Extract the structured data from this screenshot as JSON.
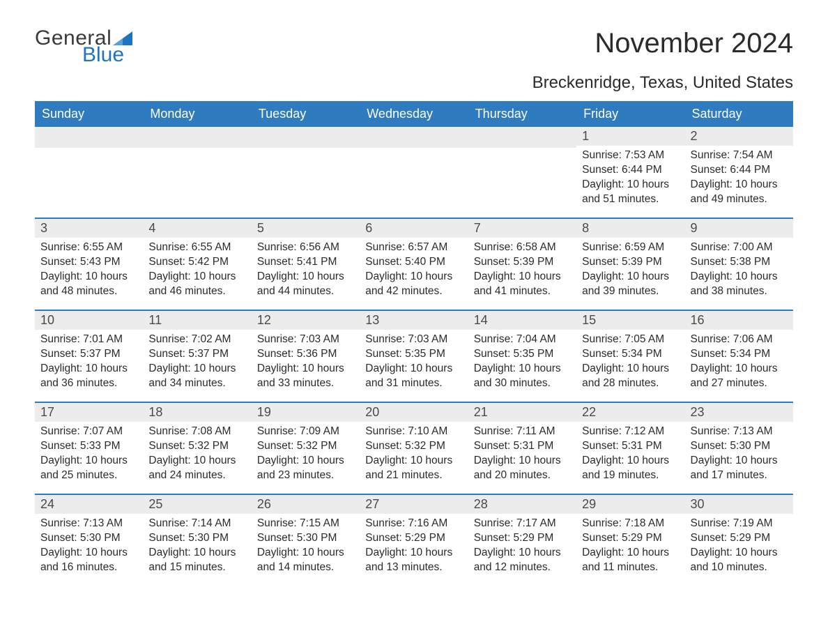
{
  "logo": {
    "word1": "General",
    "word2": "Blue",
    "brand_color": "#1f74bf"
  },
  "title": "November 2024",
  "location": "Breckenridge, Texas, United States",
  "colors": {
    "header_bg": "#2f7bbf",
    "header_text": "#ffffff",
    "daynum_bg": "#ececec",
    "week_border": "#2f7bbf",
    "body_text": "#2b2b2b"
  },
  "day_headers": [
    "Sunday",
    "Monday",
    "Tuesday",
    "Wednesday",
    "Thursday",
    "Friday",
    "Saturday"
  ],
  "weeks": [
    [
      {
        "n": "",
        "sunrise": "",
        "sunset": "",
        "daylight": ""
      },
      {
        "n": "",
        "sunrise": "",
        "sunset": "",
        "daylight": ""
      },
      {
        "n": "",
        "sunrise": "",
        "sunset": "",
        "daylight": ""
      },
      {
        "n": "",
        "sunrise": "",
        "sunset": "",
        "daylight": ""
      },
      {
        "n": "",
        "sunrise": "",
        "sunset": "",
        "daylight": ""
      },
      {
        "n": "1",
        "sunrise": "Sunrise: 7:53 AM",
        "sunset": "Sunset: 6:44 PM",
        "daylight": "Daylight: 10 hours and 51 minutes."
      },
      {
        "n": "2",
        "sunrise": "Sunrise: 7:54 AM",
        "sunset": "Sunset: 6:44 PM",
        "daylight": "Daylight: 10 hours and 49 minutes."
      }
    ],
    [
      {
        "n": "3",
        "sunrise": "Sunrise: 6:55 AM",
        "sunset": "Sunset: 5:43 PM",
        "daylight": "Daylight: 10 hours and 48 minutes."
      },
      {
        "n": "4",
        "sunrise": "Sunrise: 6:55 AM",
        "sunset": "Sunset: 5:42 PM",
        "daylight": "Daylight: 10 hours and 46 minutes."
      },
      {
        "n": "5",
        "sunrise": "Sunrise: 6:56 AM",
        "sunset": "Sunset: 5:41 PM",
        "daylight": "Daylight: 10 hours and 44 minutes."
      },
      {
        "n": "6",
        "sunrise": "Sunrise: 6:57 AM",
        "sunset": "Sunset: 5:40 PM",
        "daylight": "Daylight: 10 hours and 42 minutes."
      },
      {
        "n": "7",
        "sunrise": "Sunrise: 6:58 AM",
        "sunset": "Sunset: 5:39 PM",
        "daylight": "Daylight: 10 hours and 41 minutes."
      },
      {
        "n": "8",
        "sunrise": "Sunrise: 6:59 AM",
        "sunset": "Sunset: 5:39 PM",
        "daylight": "Daylight: 10 hours and 39 minutes."
      },
      {
        "n": "9",
        "sunrise": "Sunrise: 7:00 AM",
        "sunset": "Sunset: 5:38 PM",
        "daylight": "Daylight: 10 hours and 38 minutes."
      }
    ],
    [
      {
        "n": "10",
        "sunrise": "Sunrise: 7:01 AM",
        "sunset": "Sunset: 5:37 PM",
        "daylight": "Daylight: 10 hours and 36 minutes."
      },
      {
        "n": "11",
        "sunrise": "Sunrise: 7:02 AM",
        "sunset": "Sunset: 5:37 PM",
        "daylight": "Daylight: 10 hours and 34 minutes."
      },
      {
        "n": "12",
        "sunrise": "Sunrise: 7:03 AM",
        "sunset": "Sunset: 5:36 PM",
        "daylight": "Daylight: 10 hours and 33 minutes."
      },
      {
        "n": "13",
        "sunrise": "Sunrise: 7:03 AM",
        "sunset": "Sunset: 5:35 PM",
        "daylight": "Daylight: 10 hours and 31 minutes."
      },
      {
        "n": "14",
        "sunrise": "Sunrise: 7:04 AM",
        "sunset": "Sunset: 5:35 PM",
        "daylight": "Daylight: 10 hours and 30 minutes."
      },
      {
        "n": "15",
        "sunrise": "Sunrise: 7:05 AM",
        "sunset": "Sunset: 5:34 PM",
        "daylight": "Daylight: 10 hours and 28 minutes."
      },
      {
        "n": "16",
        "sunrise": "Sunrise: 7:06 AM",
        "sunset": "Sunset: 5:34 PM",
        "daylight": "Daylight: 10 hours and 27 minutes."
      }
    ],
    [
      {
        "n": "17",
        "sunrise": "Sunrise: 7:07 AM",
        "sunset": "Sunset: 5:33 PM",
        "daylight": "Daylight: 10 hours and 25 minutes."
      },
      {
        "n": "18",
        "sunrise": "Sunrise: 7:08 AM",
        "sunset": "Sunset: 5:32 PM",
        "daylight": "Daylight: 10 hours and 24 minutes."
      },
      {
        "n": "19",
        "sunrise": "Sunrise: 7:09 AM",
        "sunset": "Sunset: 5:32 PM",
        "daylight": "Daylight: 10 hours and 23 minutes."
      },
      {
        "n": "20",
        "sunrise": "Sunrise: 7:10 AM",
        "sunset": "Sunset: 5:32 PM",
        "daylight": "Daylight: 10 hours and 21 minutes."
      },
      {
        "n": "21",
        "sunrise": "Sunrise: 7:11 AM",
        "sunset": "Sunset: 5:31 PM",
        "daylight": "Daylight: 10 hours and 20 minutes."
      },
      {
        "n": "22",
        "sunrise": "Sunrise: 7:12 AM",
        "sunset": "Sunset: 5:31 PM",
        "daylight": "Daylight: 10 hours and 19 minutes."
      },
      {
        "n": "23",
        "sunrise": "Sunrise: 7:13 AM",
        "sunset": "Sunset: 5:30 PM",
        "daylight": "Daylight: 10 hours and 17 minutes."
      }
    ],
    [
      {
        "n": "24",
        "sunrise": "Sunrise: 7:13 AM",
        "sunset": "Sunset: 5:30 PM",
        "daylight": "Daylight: 10 hours and 16 minutes."
      },
      {
        "n": "25",
        "sunrise": "Sunrise: 7:14 AM",
        "sunset": "Sunset: 5:30 PM",
        "daylight": "Daylight: 10 hours and 15 minutes."
      },
      {
        "n": "26",
        "sunrise": "Sunrise: 7:15 AM",
        "sunset": "Sunset: 5:30 PM",
        "daylight": "Daylight: 10 hours and 14 minutes."
      },
      {
        "n": "27",
        "sunrise": "Sunrise: 7:16 AM",
        "sunset": "Sunset: 5:29 PM",
        "daylight": "Daylight: 10 hours and 13 minutes."
      },
      {
        "n": "28",
        "sunrise": "Sunrise: 7:17 AM",
        "sunset": "Sunset: 5:29 PM",
        "daylight": "Daylight: 10 hours and 12 minutes."
      },
      {
        "n": "29",
        "sunrise": "Sunrise: 7:18 AM",
        "sunset": "Sunset: 5:29 PM",
        "daylight": "Daylight: 10 hours and 11 minutes."
      },
      {
        "n": "30",
        "sunrise": "Sunrise: 7:19 AM",
        "sunset": "Sunset: 5:29 PM",
        "daylight": "Daylight: 10 hours and 10 minutes."
      }
    ]
  ]
}
